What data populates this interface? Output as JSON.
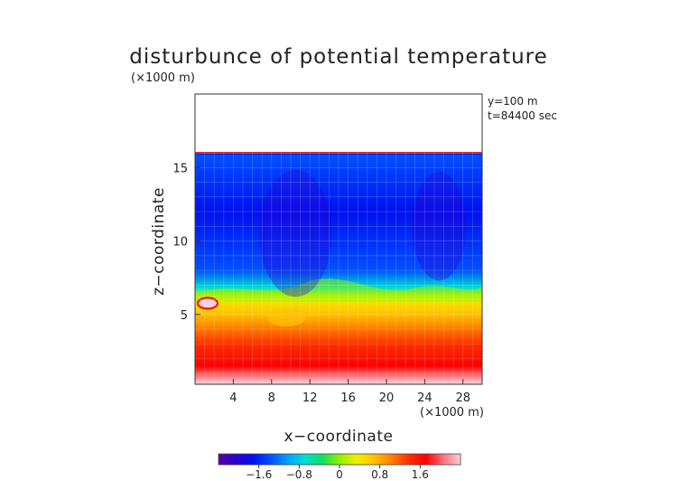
{
  "chart_data": {
    "type": "heatmap",
    "title": "disturbunce of potential temperature",
    "yunit": "(×1000 m)",
    "xunit": "(×1000 m)",
    "xlabel": "x−coordinate",
    "ylabel": "z−coordinate",
    "annotations": [
      "y=100  m",
      "t=84400 sec"
    ],
    "xlim": [
      0,
      30
    ],
    "ylim": [
      0.25,
      20
    ],
    "xticks": [
      4,
      8,
      12,
      16,
      20,
      24,
      28
    ],
    "yticks": [
      5,
      10,
      15
    ],
    "colorbar": {
      "range": [
        -2.4,
        2.4
      ],
      "tick_values": [
        -1.6,
        -0.8,
        0,
        0.8,
        1.6
      ],
      "tick_labels": [
        "−1.6",
        "−0.8",
        "0",
        "0.8",
        "1.6"
      ],
      "colors": [
        "#5a00a0",
        "#2a00d0",
        "#0010f0",
        "#0050ff",
        "#00a0ff",
        "#00e0d0",
        "#10e060",
        "#90f000",
        "#f0f000",
        "#ffc000",
        "#ff8000",
        "#ff3000",
        "#ff0000",
        "#ff7080",
        "#ffd0d8"
      ]
    },
    "profile": [
      {
        "z": 0.3,
        "value": 2.3
      },
      {
        "z": 1.5,
        "value": 1.6
      },
      {
        "z": 3.0,
        "value": 1.2
      },
      {
        "z": 5.0,
        "value": 0.8
      },
      {
        "z": 6.2,
        "value": 0.2
      },
      {
        "z": 6.8,
        "value": -0.8
      },
      {
        "z": 8.0,
        "value": -1.3
      },
      {
        "z": 12.0,
        "value": -1.6
      },
      {
        "z": 15.8,
        "value": -1.4
      },
      {
        "z": 16.0,
        "value": -2.0
      }
    ],
    "domain_top_z": 16.0,
    "interface_z": 6.5,
    "blank_above_top": true
  }
}
